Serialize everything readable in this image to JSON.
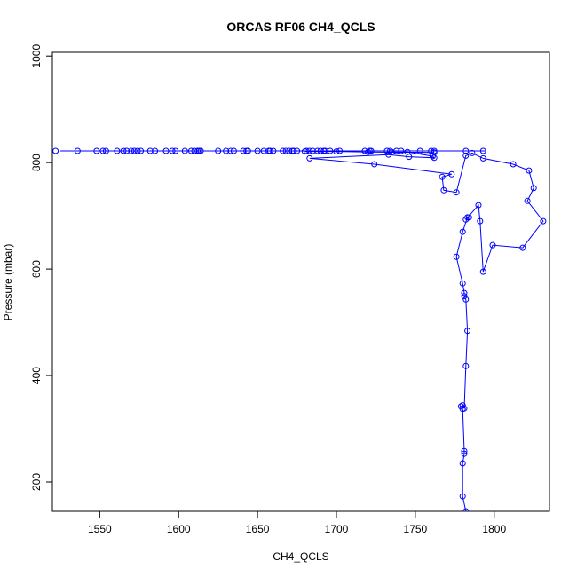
{
  "chart_data": {
    "type": "scatter",
    "title": "ORCAS RF06 CH4_QCLS",
    "xlabel": "CH4_QCLS",
    "ylabel": "Pressure (mbar)",
    "xlim": [
      1520,
      1835
    ],
    "ylim": [
      1007,
      145
    ],
    "y_inverted": true,
    "x_ticks": [
      1550,
      1600,
      1650,
      1700,
      1750,
      1800
    ],
    "y_ticks": [
      200,
      400,
      600,
      800,
      1000
    ],
    "grid": false,
    "legend": "none",
    "series_color": "#0000ff",
    "frame_color": "#000000",
    "series": [
      {
        "points_x": [
          1782,
          1780,
          1780,
          1781,
          1781,
          1780,
          1779,
          1780,
          1781,
          1782,
          1783,
          1782,
          1781,
          1781,
          1780,
          1776,
          1780,
          1783,
          1784,
          1782,
          1790,
          1791,
          1793,
          1799,
          1818,
          1831,
          1821,
          1825,
          1822,
          1812,
          1793,
          1786,
          1782,
          1776,
          1768,
          1767,
          1773,
          1724,
          1683,
          1733,
          1746,
          1762,
          1761,
          1745,
          1735,
          1762,
          1720,
          1700,
          1680
        ],
        "points_y": [
          145,
          173,
          235,
          253,
          258,
          337,
          342,
          344,
          338,
          418,
          484,
          543,
          549,
          555,
          573,
          623,
          670,
          697,
          697,
          693,
          720,
          690,
          595,
          645,
          640,
          690,
          728,
          752,
          785,
          797,
          808,
          818,
          813,
          744,
          748,
          773,
          778,
          797,
          808,
          815,
          811,
          809,
          812,
          820,
          820,
          819,
          820,
          821,
          821
        ],
        "line_x": [
          1782,
          1780,
          1780,
          1781,
          1781,
          1780,
          1779,
          1780,
          1781,
          1782,
          1783,
          1782,
          1781,
          1781,
          1780,
          1776,
          1780,
          1783,
          1784,
          1782,
          1790,
          1791,
          1793,
          1799,
          1818,
          1831,
          1821,
          1825,
          1822,
          1812,
          1793,
          1786,
          1782,
          1776,
          1768,
          1767,
          1773,
          1724,
          1683,
          1733,
          1746,
          1762,
          1761,
          1745,
          1735,
          1762,
          1720,
          1700,
          1680
        ],
        "line_y": [
          145,
          173,
          235,
          253,
          258,
          337,
          342,
          344,
          338,
          418,
          484,
          543,
          549,
          555,
          573,
          623,
          670,
          697,
          697,
          693,
          720,
          690,
          595,
          645,
          640,
          690,
          728,
          752,
          785,
          797,
          808,
          818,
          813,
          744,
          748,
          773,
          778,
          797,
          808,
          815,
          811,
          809,
          812,
          820,
          820,
          819,
          820,
          821,
          821
        ]
      },
      {
        "points_x": [
          1522,
          1536,
          1548,
          1552,
          1554,
          1561,
          1565,
          1567,
          1570,
          1572,
          1574,
          1576,
          1582,
          1585,
          1592,
          1596,
          1598,
          1604,
          1608,
          1610,
          1612,
          1613,
          1614,
          1625,
          1630,
          1633,
          1635,
          1641,
          1643,
          1644,
          1650,
          1654,
          1657,
          1658,
          1660,
          1666,
          1668,
          1670,
          1672,
          1673,
          1675,
          1681,
          1683,
          1685,
          1688,
          1690,
          1692,
          1693,
          1696,
          1702,
          1718,
          1721,
          1722,
          1732,
          1734,
          1738,
          1741,
          1753,
          1760,
          1762,
          1782,
          1793
        ],
        "points_y": [
          822,
          822,
          822,
          822,
          822,
          822,
          822,
          822,
          822,
          822,
          822,
          822,
          822,
          822,
          822,
          822,
          822,
          822,
          822,
          822,
          822,
          822,
          822,
          822,
          822,
          822,
          822,
          822,
          822,
          822,
          822,
          822,
          822,
          822,
          822,
          822,
          822,
          822,
          822,
          822,
          822,
          822,
          822,
          822,
          822,
          822,
          822,
          822,
          822,
          822,
          822,
          822,
          822,
          822,
          822,
          822,
          822,
          822,
          822,
          822,
          822,
          822
        ],
        "line_x": [
          1525,
          1795
        ],
        "line_y": [
          822,
          822
        ]
      }
    ]
  }
}
